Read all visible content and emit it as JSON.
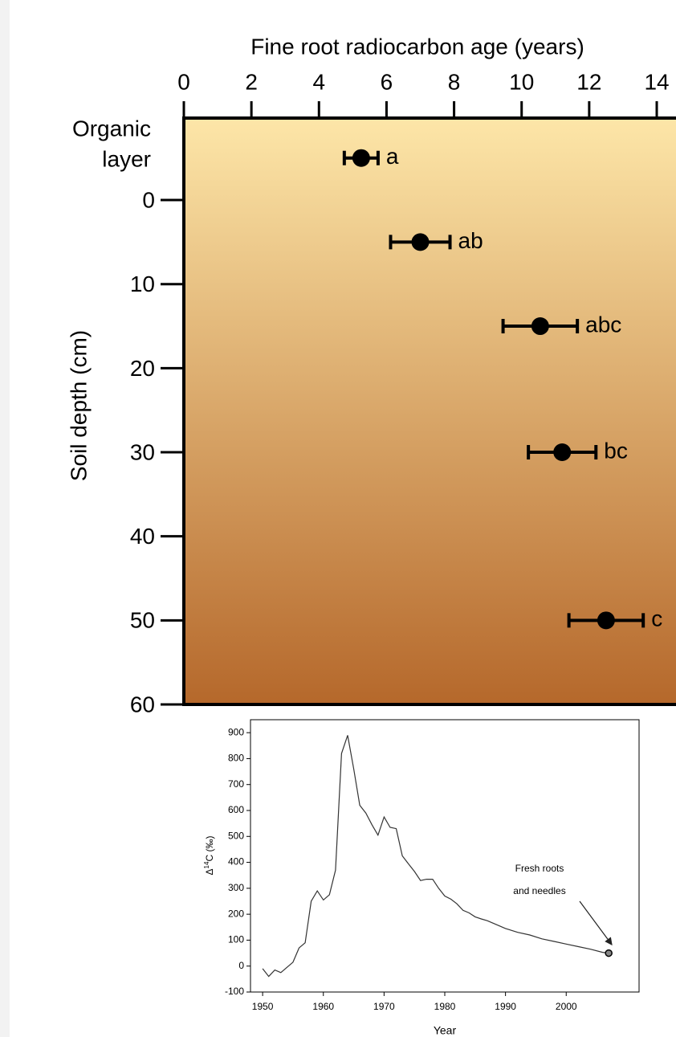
{
  "chart_data": [
    {
      "type": "scatter",
      "title": "Fine root radiocarbon age (years)",
      "ylabel": "Soil depth (cm)",
      "organic_label": [
        "Organic",
        "layer"
      ],
      "x": [
        5.25,
        7.0,
        10.55,
        11.2,
        12.5
      ],
      "y": [
        -5,
        5,
        15,
        30,
        50
      ],
      "xerr": [
        0.5,
        0.88,
        1.1,
        1.0,
        1.1
      ],
      "point_labels": [
        "a",
        "ab",
        "abc",
        "bc",
        "c"
      ],
      "color": "#000000",
      "xlim": [
        0,
        14.57
      ],
      "xticks": [
        0,
        2,
        4,
        6,
        8,
        10,
        12,
        14
      ],
      "ylim": [
        -9.75,
        60
      ],
      "yticks": [
        0,
        10,
        20,
        30,
        40,
        50,
        60
      ],
      "y_inverted": true,
      "background": [
        "#fde6a8",
        "#b5682b"
      ]
    },
    {
      "type": "line",
      "xlabel": "Year",
      "ylabel_parts": [
        "Δ",
        "14",
        "C (‰)"
      ],
      "annotation": [
        "Fresh roots",
        "and needles"
      ],
      "x": [
        1950,
        1951,
        1952,
        1953,
        1954,
        1955,
        1956,
        1957,
        1958,
        1959,
        1960,
        1961,
        1962,
        1963,
        1964,
        1965,
        1966,
        1967,
        1968,
        1969,
        1970,
        1971,
        1972,
        1973,
        1974,
        1975,
        1976,
        1977,
        1978,
        1979,
        1980,
        1981,
        1982,
        1983,
        1984,
        1985,
        1986,
        1987,
        1988,
        1989,
        1990,
        1992,
        1994,
        1996,
        1998,
        2000,
        2002,
        2004,
        2006,
        2007
      ],
      "values": [
        -10,
        -40,
        -15,
        -25,
        -5,
        15,
        70,
        90,
        250,
        290,
        255,
        275,
        370,
        820,
        890,
        760,
        620,
        590,
        545,
        505,
        575,
        535,
        530,
        425,
        395,
        365,
        330,
        335,
        335,
        300,
        270,
        258,
        240,
        215,
        205,
        190,
        182,
        175,
        165,
        155,
        145,
        130,
        120,
        105,
        95,
        85,
        75,
        65,
        53,
        50
      ],
      "color": "#333333",
      "xlim": [
        1948,
        2012
      ],
      "xticks": [
        1950,
        1960,
        1970,
        1980,
        1990,
        2000
      ],
      "ylim": [
        -100,
        950
      ],
      "yticks": [
        -100,
        0,
        100,
        200,
        300,
        400,
        500,
        600,
        700,
        800,
        900
      ]
    }
  ]
}
